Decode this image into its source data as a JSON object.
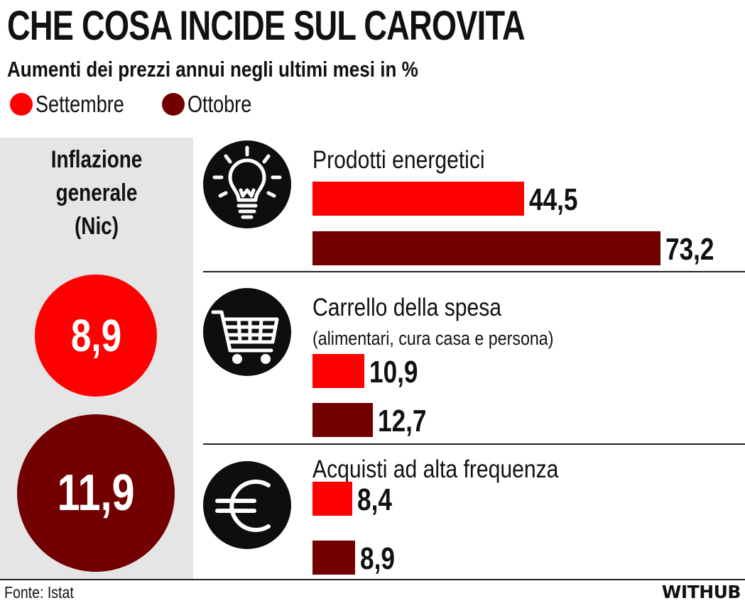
{
  "title": "CHE COSA INCIDE SUL CAROVITA",
  "subtitle": "Aumenti dei prezzi annui negli ultimi mesi in %",
  "colors": {
    "settembre": "#ff0000",
    "ottobre": "#730000",
    "panel": "#e5e5e5",
    "icon_bg": "#0e0e0e"
  },
  "legend": [
    {
      "label": "Settembre",
      "color": "#ff0000"
    },
    {
      "label": "Ottobre",
      "color": "#730000"
    }
  ],
  "nic": {
    "title_lines": [
      "Inflazione",
      "generale",
      "(Nic)"
    ],
    "settembre": "8,9",
    "ottobre": "11,9"
  },
  "chart_data": {
    "type": "bar",
    "title": "CHE COSA INCIDE SUL CAROVITA",
    "subtitle": "Aumenti dei prezzi annui negli ultimi mesi in %",
    "categories": [
      "Prodotti energetici",
      "Carrello della spesa",
      "Acquisti ad alta frequenza"
    ],
    "category_notes": [
      "",
      "(alimentari, cura casa e persona)",
      ""
    ],
    "icons": [
      "lightbulb-icon",
      "shopping-cart-icon",
      "euro-icon"
    ],
    "series": [
      {
        "name": "Settembre",
        "color": "#ff0000",
        "values": [
          44.5,
          10.9,
          8.4
        ],
        "labels": [
          "44,5",
          "10,9",
          "8,4"
        ]
      },
      {
        "name": "Ottobre",
        "color": "#730000",
        "values": [
          73.2,
          12.7,
          8.9
        ],
        "labels": [
          "73,2",
          "12,7",
          "8,9"
        ]
      }
    ],
    "grid": false,
    "legend_position": "top-left"
  },
  "footer": {
    "source": "Fonte: Istat",
    "brand": "WITHUB"
  }
}
